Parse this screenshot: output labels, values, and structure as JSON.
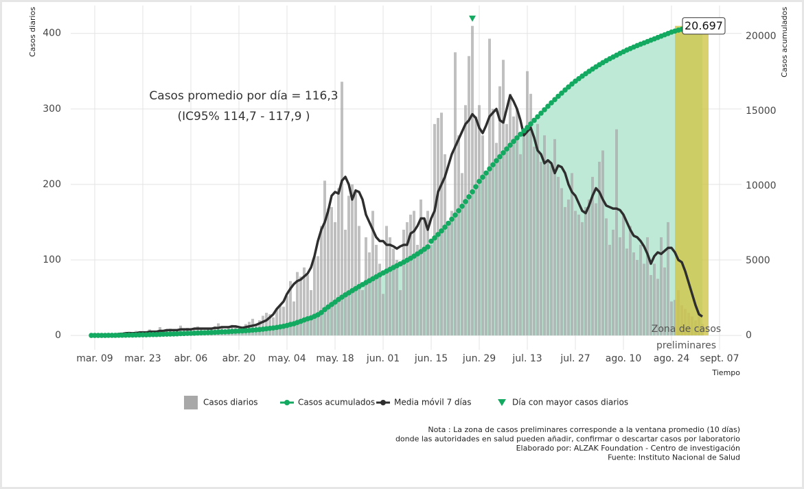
{
  "chart_data": {
    "type": "combo",
    "x": [
      -1,
      0,
      1,
      2,
      3,
      4,
      5,
      6,
      7,
      8,
      9,
      10,
      11,
      12,
      13,
      14,
      15,
      16,
      17,
      18,
      19,
      20,
      21,
      22,
      23,
      24,
      25,
      26,
      27,
      28,
      29,
      30,
      31,
      32,
      33,
      34,
      35,
      36,
      37,
      38,
      39,
      40,
      41,
      42,
      43,
      44,
      45,
      46,
      47,
      48,
      49,
      50,
      51,
      52,
      53,
      54,
      55,
      56,
      57,
      58,
      59,
      60,
      61,
      62,
      63,
      64,
      65,
      66,
      67,
      68,
      69,
      70,
      71,
      72,
      73,
      74,
      75,
      76,
      77,
      78,
      79,
      80,
      81,
      82,
      83,
      84,
      85,
      86,
      87,
      88,
      89,
      90,
      91,
      92,
      93,
      94,
      95,
      96,
      97,
      98,
      99,
      100,
      101,
      102,
      103,
      104,
      105,
      106,
      107,
      108,
      109,
      110,
      111,
      112,
      113,
      114,
      115,
      116,
      117,
      118,
      119,
      120,
      121,
      122,
      123,
      124,
      125,
      126,
      127,
      128,
      129,
      130,
      131,
      132,
      133,
      134,
      135,
      136,
      137,
      138,
      139,
      140,
      141,
      142,
      143,
      144,
      145,
      146,
      147,
      148,
      149,
      150,
      151,
      152,
      153,
      154,
      155,
      156,
      157,
      158,
      159,
      160,
      161,
      162,
      163,
      164,
      165,
      166,
      167,
      168,
      169,
      170,
      171,
      172,
      173,
      174,
      175,
      176,
      177
    ],
    "xlim": [
      -7,
      188.4
    ],
    "xticks": [
      {
        "value": 0,
        "label": "mar. 09"
      },
      {
        "value": 14,
        "label": "mar. 23"
      },
      {
        "value": 28,
        "label": "abr. 06"
      },
      {
        "value": 42,
        "label": "abr. 20"
      },
      {
        "value": 56,
        "label": "may. 04"
      },
      {
        "value": 70,
        "label": "may. 18"
      },
      {
        "value": 84,
        "label": "jun. 01"
      },
      {
        "value": 98,
        "label": "jun. 15"
      },
      {
        "value": 112,
        "label": "jun. 29"
      },
      {
        "value": 126,
        "label": "jul. 13"
      },
      {
        "value": 140,
        "label": "jul. 27"
      },
      {
        "value": 154,
        "label": "ago. 10"
      },
      {
        "value": 168,
        "label": "ago. 24"
      },
      {
        "value": 182,
        "label": "sept. 07"
      }
    ],
    "ylim": [
      -19,
      437
    ],
    "yticks": [
      0,
      100,
      200,
      300,
      400
    ],
    "y2lim": [
      -960,
      22060
    ],
    "y2ticks": [
      0,
      5000,
      10000,
      15000,
      20000
    ],
    "y_label": "Casos diarios",
    "y2_label": "Casos acumulados",
    "x_label": "Tiempo",
    "grid": true,
    "series": [
      {
        "name": "Casos diarios",
        "kind": "bar",
        "color": "#a8a8a8",
        "values": [
          1,
          0,
          0,
          1,
          0,
          2,
          1,
          3,
          2,
          4,
          3,
          5,
          2,
          6,
          4,
          5,
          3,
          8,
          6,
          4,
          11,
          7,
          6,
          9,
          5,
          8,
          13,
          7,
          10,
          6,
          9,
          12,
          8,
          7,
          10,
          9,
          12,
          16,
          10,
          8,
          11,
          14,
          13,
          9,
          12,
          15,
          18,
          22,
          14,
          20,
          26,
          30,
          28,
          24,
          35,
          40,
          38,
          52,
          72,
          45,
          84,
          78,
          90,
          80,
          60,
          105,
          105,
          145,
          205,
          168,
          170,
          150,
          195,
          336,
          140,
          185,
          200,
          190,
          145,
          60,
          130,
          110,
          165,
          120,
          95,
          55,
          145,
          130,
          115,
          100,
          60,
          140,
          150,
          160,
          165,
          120,
          180,
          155,
          165,
          120,
          280,
          288,
          295,
          240,
          145,
          165,
          375,
          265,
          215,
          305,
          370,
          410,
          290,
          305,
          265,
          215,
          393,
          300,
          255,
          330,
          365,
          280,
          320,
          290,
          300,
          240,
          270,
          350,
          320,
          250,
          280,
          230,
          265,
          230,
          225,
          260,
          210,
          195,
          170,
          180,
          215,
          165,
          160,
          150,
          170,
          180,
          210,
          175,
          230,
          245,
          155,
          120,
          140,
          273,
          130,
          160,
          115,
          145,
          110,
          100,
          120,
          95,
          130,
          80,
          95,
          75,
          130,
          90,
          150,
          45,
          47,
          60,
          40,
          35,
          30,
          25,
          20,
          25,
          15
        ]
      },
      {
        "name": "Casos acumulados",
        "kind": "points",
        "axis": "y2",
        "color": "#13a960",
        "area_color": "#bde9d6",
        "end_label": "20.697",
        "values": [
          1,
          1,
          1,
          2,
          2,
          4,
          5,
          8,
          10,
          14,
          17,
          22,
          24,
          30,
          34,
          39,
          42,
          50,
          56,
          60,
          71,
          78,
          84,
          93,
          98,
          106,
          119,
          126,
          136,
          142,
          151,
          163,
          171,
          178,
          188,
          197,
          209,
          225,
          235,
          243,
          254,
          268,
          281,
          290,
          302,
          317,
          335,
          357,
          371,
          391,
          417,
          447,
          475,
          499,
          534,
          574,
          612,
          664,
          736,
          781,
          865,
          943,
          1033,
          1113,
          1173,
          1278,
          1383,
          1528,
          1733,
          1901,
          2071,
          2230,
          2400,
          2560,
          2710,
          2850,
          2990,
          3130,
          3270,
          3400,
          3530,
          3660,
          3790,
          3920,
          4050,
          4180,
          4300,
          4420,
          4540,
          4660,
          4780,
          4900,
          5030,
          5160,
          5300,
          5450,
          5600,
          5760,
          5920,
          6300,
          6520,
          6750,
          6990,
          7240,
          7500,
          7770,
          8050,
          8340,
          8640,
          8950,
          9270,
          9600,
          9940,
          10300,
          10580,
          10860,
          11140,
          11410,
          11680,
          11950,
          12210,
          12470,
          12720,
          12970,
          13210,
          13450,
          13680,
          13900,
          14140,
          14380,
          14620,
          14860,
          15090,
          15320,
          15550,
          15770,
          15990,
          16200,
          16410,
          16610,
          16810,
          17000,
          17170,
          17340,
          17500,
          17660,
          17810,
          17960,
          18100,
          18240,
          18370,
          18500,
          18620,
          18740,
          18860,
          18970,
          19080,
          19180,
          19280,
          19380,
          19470,
          19560,
          19650,
          19740,
          19830,
          19920,
          20010,
          20100,
          20190,
          20280,
          20350,
          20410,
          20470,
          20530,
          20580,
          20620,
          20650,
          20675,
          20697
        ]
      },
      {
        "name": "Media móvil 7 días",
        "kind": "line",
        "color": "#2e2e2e",
        "values": [
          0,
          0,
          0,
          1,
          1,
          1,
          1,
          1,
          2,
          2,
          3,
          3,
          3,
          3,
          4,
          4,
          4,
          5,
          5,
          5,
          6,
          6,
          7,
          7,
          7,
          7,
          8,
          8,
          8,
          8,
          9,
          9,
          9,
          9,
          9,
          9,
          10,
          10,
          11,
          11,
          11,
          12,
          12,
          11,
          10,
          11,
          12,
          13,
          14,
          16,
          18,
          20,
          24,
          28,
          35,
          40,
          45,
          55,
          62,
          68,
          72,
          74,
          78,
          82,
          90,
          105,
          125,
          140,
          150,
          165,
          185,
          190,
          188,
          205,
          210,
          200,
          180,
          192,
          190,
          180,
          160,
          150,
          140,
          130,
          125,
          125,
          120,
          120,
          118,
          115,
          118,
          120,
          120,
          135,
          138,
          145,
          155,
          155,
          140,
          155,
          165,
          190,
          200,
          210,
          225,
          240,
          250,
          260,
          270,
          280,
          285,
          293,
          288,
          275,
          268,
          278,
          290,
          295,
          300,
          285,
          282,
          300,
          318,
          310,
          300,
          285,
          265,
          270,
          275,
          262,
          245,
          240,
          228,
          232,
          228,
          215,
          225,
          223,
          215,
          200,
          190,
          185,
          175,
          165,
          162,
          172,
          185,
          195,
          190,
          180,
          172,
          170,
          168,
          168,
          166,
          160,
          150,
          140,
          132,
          130,
          125,
          118,
          108,
          95,
          105,
          110,
          108,
          112,
          116,
          116,
          110,
          100,
          97,
          85,
          70,
          55,
          40,
          28,
          25
        ]
      }
    ],
    "peak_marker": {
      "name": "Día con mayor casos diarios",
      "color": "#13a960"
    },
    "preliminary_zone": {
      "range": [
        169,
        178.8
      ],
      "color": "#cfc548",
      "label_lines": [
        "Zona de casos",
        "preliminares"
      ]
    },
    "annotation_lines": [
      "Casos promedio por día = 116,3",
      "(IC95% 114,7 - 117,9 )"
    ],
    "notes": [
      "Nota :  La zona de casos preliminares corresponde a la ventana promedio (10 días)",
      "donde las autoridades en salud pueden añadir, confirmar o descartar casos por laboratorio",
      "Elaborado por: ALZAK Foundation - Centro de investigación",
      "Fuente: Instituto Nacional de Salud"
    ]
  }
}
